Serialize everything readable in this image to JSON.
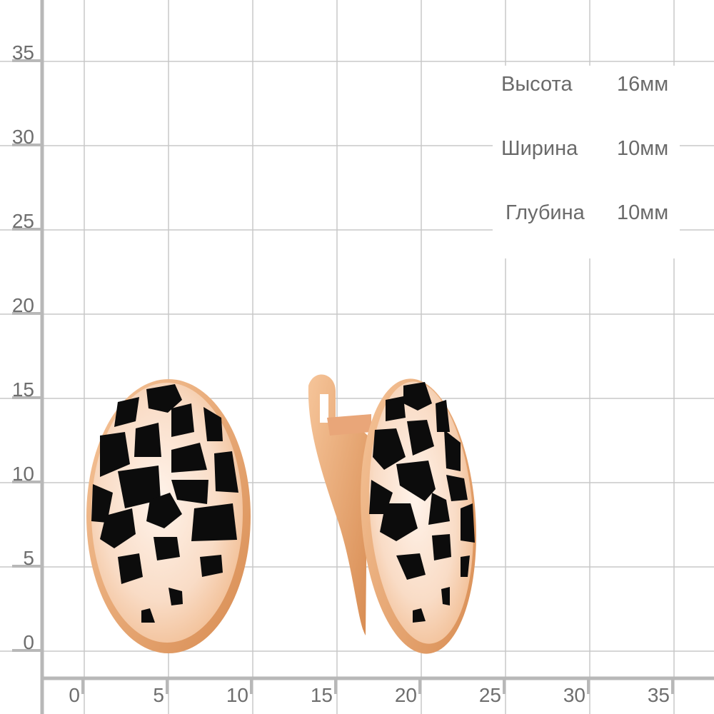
{
  "axes": {
    "y_ticks": [
      "35",
      "30",
      "25",
      "20",
      "15",
      "10",
      "5",
      "0"
    ],
    "x_ticks": [
      "0",
      "5",
      "10",
      "15",
      "20",
      "25",
      "30",
      "35"
    ],
    "grid_color": "#c8c8c8",
    "axis_color": "#b8b8b8"
  },
  "specs": [
    {
      "label": "Высота",
      "value": "16мм"
    },
    {
      "label": "Ширина",
      "value": "10мм"
    },
    {
      "label": "Глубина",
      "value": "10мм"
    }
  ],
  "product": {
    "metal_color": "#f0b88a",
    "enamel_color": "#0c0c0c"
  }
}
